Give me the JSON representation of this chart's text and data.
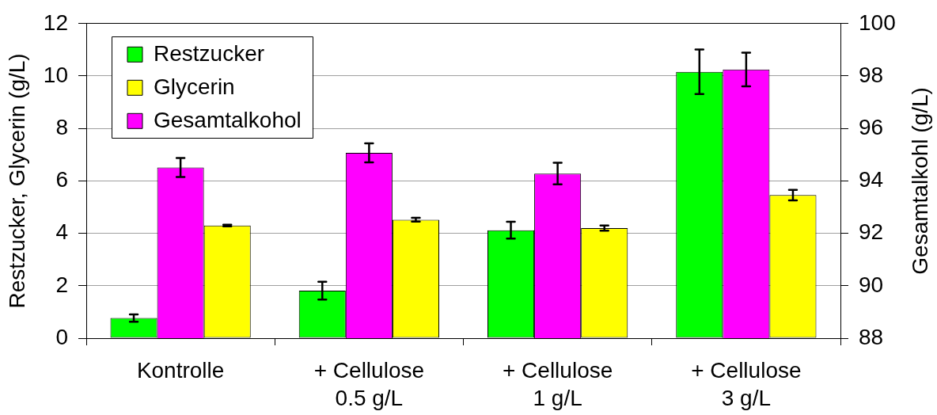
{
  "chart_data": {
    "type": "bar",
    "categories": [
      "Kontrolle",
      "+ Cellulose 0.5 g/L",
      "+ Cellulose 1 g/L",
      "+ Cellulose 3 g/L"
    ],
    "ylabel": "Restzucker, Glycerin (g/L)",
    "y2label": "Gesamtalkohl (g/L)",
    "series": [
      {
        "name": "Restzucker",
        "color": "#00ff00",
        "values": [
          0.77,
          1.81,
          4.12,
          10.16
        ],
        "errors": [
          0.14,
          0.34,
          0.32,
          0.85
        ]
      },
      {
        "name": "Gesamtalkohol",
        "color": "#ff00ff",
        "axis": "y2",
        "values": [
          94.51,
          95.07,
          94.28,
          98.25
        ],
        "errors": [
          0.36,
          0.36,
          0.41,
          0.64
        ]
      },
      {
        "name": "Glycerin",
        "color": "#ffff00",
        "values": [
          4.3,
          4.52,
          4.2,
          5.46
        ],
        "errors": [
          0.03,
          0.07,
          0.1,
          0.2
        ]
      }
    ],
    "ylim": [
      0,
      12
    ],
    "yticks": [
      0,
      2,
      4,
      6,
      8,
      10,
      12
    ],
    "y2lim": [
      88,
      100
    ],
    "y2ticks": [
      88,
      90,
      92,
      94,
      96,
      98,
      100
    ],
    "grid": "y",
    "legend": "top left"
  }
}
